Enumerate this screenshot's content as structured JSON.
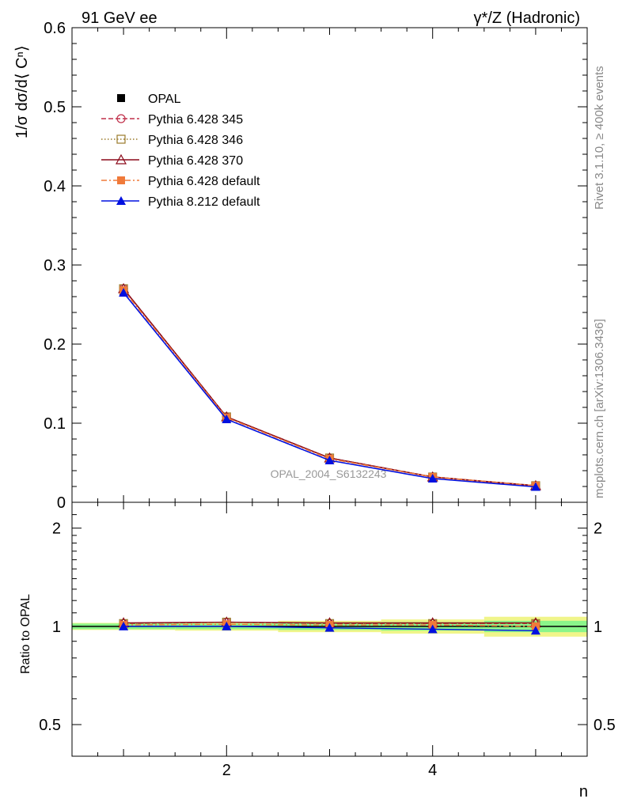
{
  "header": {
    "left": "91 GeV ee",
    "right": "γ*/Z (Hadronic)"
  },
  "side": {
    "rivet": "Rivet 3.1.10, ≥ 400k events",
    "mcplots": "mcplots.cern.ch [arXiv:1306.3436]"
  },
  "watermark": "OPAL_2004_S6132243",
  "colors": {
    "opal": "#000000",
    "p345": "#c0304a",
    "p346": "#9a7a2a",
    "p370": "#8b0a1a",
    "p6def": "#f07a3a",
    "p8def": "#0010e0",
    "band_green": "#8af58a",
    "band_yellow": "#f0f58a"
  },
  "chart_data": [
    {
      "type": "line",
      "title": "",
      "xlabel": "n",
      "ylabel": "1/σ dσ/d⟨ Cⁿ⟩",
      "xlim": [
        0.5,
        5.5
      ],
      "ylim": [
        0,
        0.6
      ],
      "yticks": [
        0,
        0.1,
        0.2,
        0.3,
        0.4,
        0.5,
        0.6
      ],
      "ytick_labels": [
        "0",
        "0.1",
        "0.2",
        "0.3",
        "0.4",
        "0.5",
        "0.6"
      ],
      "x": [
        1,
        2,
        3,
        4,
        5
      ],
      "series": [
        {
          "name": "OPAL",
          "key": "opal",
          "marker": "square-filled",
          "line": "none",
          "values": [
            0.265,
            0.105,
            0.054,
            0.031,
            0.02
          ]
        },
        {
          "name": "Pythia 6.428 345",
          "key": "p345",
          "marker": "circle-open",
          "line": "dashed",
          "values": [
            0.27,
            0.108,
            0.056,
            0.032,
            0.021
          ]
        },
        {
          "name": "Pythia 6.428 346",
          "key": "p346",
          "marker": "square-open",
          "line": "dotted",
          "values": [
            0.27,
            0.108,
            0.056,
            0.032,
            0.021
          ]
        },
        {
          "name": "Pythia 6.428 370",
          "key": "p370",
          "marker": "triangle-open",
          "line": "solid",
          "values": [
            0.27,
            0.108,
            0.056,
            0.032,
            0.021
          ]
        },
        {
          "name": "Pythia 6.428 default",
          "key": "p6def",
          "marker": "square-filled",
          "line": "dashdot",
          "values": [
            0.268,
            0.107,
            0.055,
            0.032,
            0.021
          ]
        },
        {
          "name": "Pythia 8.212 default",
          "key": "p8def",
          "marker": "triangle-filled",
          "line": "solid",
          "values": [
            0.265,
            0.105,
            0.053,
            0.03,
            0.0195
          ]
        }
      ]
    },
    {
      "type": "line",
      "title": "",
      "xlabel": "n",
      "ylabel": "Ratio to OPAL",
      "xlim": [
        0.5,
        5.5
      ],
      "ylim": [
        0.4,
        2.4
      ],
      "yscale": "log",
      "yticks": [
        0.5,
        1,
        2
      ],
      "ytick_labels": [
        "0.5",
        "1",
        "2"
      ],
      "xticks": [
        2,
        4
      ],
      "xtick_labels": [
        "2",
        "4"
      ],
      "x": [
        1,
        2,
        3,
        4,
        5
      ],
      "series": [
        {
          "name": "Pythia 6.428 345",
          "key": "p345",
          "values": [
            1.02,
            1.03,
            1.02,
            1.02,
            1.02
          ]
        },
        {
          "name": "Pythia 6.428 346",
          "key": "p346",
          "values": [
            1.02,
            1.03,
            1.02,
            1.02,
            1.02
          ]
        },
        {
          "name": "Pythia 6.428 370",
          "key": "p370",
          "values": [
            1.025,
            1.03,
            1.025,
            1.025,
            1.025
          ]
        },
        {
          "name": "Pythia 6.428 default",
          "key": "p6def",
          "values": [
            1.01,
            1.015,
            1.01,
            1.01,
            1.0
          ]
        },
        {
          "name": "Pythia 8.212 default",
          "key": "p8def",
          "values": [
            1.0,
            1.0,
            0.99,
            0.98,
            0.97
          ]
        }
      ],
      "band": {
        "x_edges": [
          0.5,
          1.5,
          2.5,
          3.5,
          4.5,
          5.5
        ],
        "green": [
          0.02,
          0.02,
          0.025,
          0.03,
          0.04
        ],
        "yellow": [
          0.025,
          0.03,
          0.04,
          0.05,
          0.07
        ]
      }
    }
  ]
}
